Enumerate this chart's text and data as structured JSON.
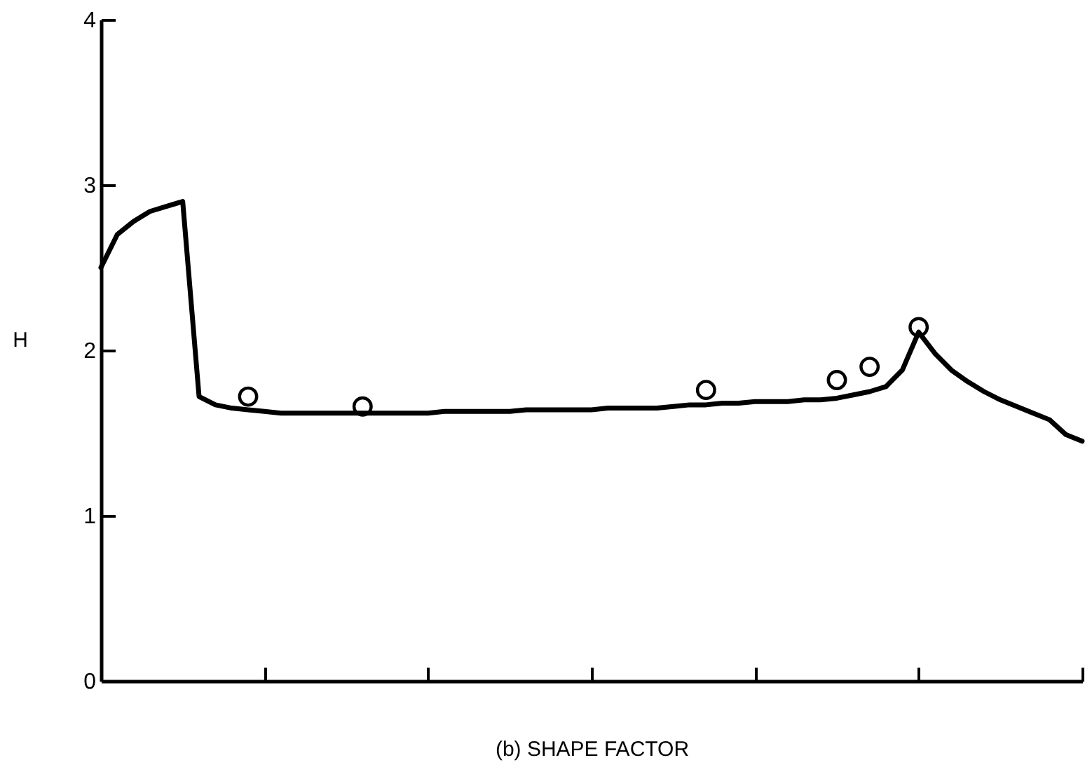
{
  "chart_data": {
    "type": "line",
    "xlabel": "(b) SHAPE FACTOR",
    "ylabel": "H",
    "categories": [
      null,
      null,
      null,
      null,
      null,
      null,
      null,
      null,
      null,
      null,
      null,
      null,
      null,
      null,
      null,
      null,
      null,
      null,
      null,
      null,
      null,
      null,
      null,
      null,
      null,
      null,
      null,
      null,
      null,
      null,
      null,
      null,
      null,
      null,
      null,
      null,
      null,
      null,
      null,
      null,
      null,
      null,
      null,
      null,
      null,
      null,
      null,
      null,
      null,
      null,
      null,
      null,
      null,
      null,
      null,
      null,
      null,
      null,
      null,
      null,
      null
    ],
    "ylim": [
      0,
      4
    ],
    "yticks": [
      0,
      1,
      2,
      3,
      4
    ],
    "grid": false,
    "series": [
      {
        "color": "#000000",
        "marker": "none",
        "line_style": "solid",
        "values": [
          2.5,
          2.7,
          2.78,
          2.84,
          2.87,
          2.9,
          1.72,
          1.67,
          1.65,
          1.64,
          1.63,
          1.62,
          1.62,
          1.62,
          1.62,
          1.62,
          1.62,
          1.62,
          1.62,
          1.62,
          1.62,
          1.63,
          1.63,
          1.63,
          1.63,
          1.63,
          1.64,
          1.64,
          1.64,
          1.64,
          1.64,
          1.65,
          1.65,
          1.65,
          1.65,
          1.66,
          1.67,
          1.67,
          1.68,
          1.68,
          1.69,
          1.69,
          1.69,
          1.7,
          1.7,
          1.71,
          1.73,
          1.75,
          1.78,
          1.88,
          2.11,
          1.98,
          1.88,
          1.81,
          1.75,
          1.7,
          1.66,
          1.62,
          1.58,
          1.49,
          1.45
        ]
      },
      {
        "type": "scatter",
        "color": "#000000",
        "marker": "circle",
        "values": [
          null,
          null,
          null,
          null,
          null,
          null,
          null,
          null,
          null,
          1.72,
          null,
          null,
          null,
          null,
          null,
          null,
          1.66,
          null,
          null,
          null,
          null,
          null,
          null,
          null,
          null,
          null,
          null,
          null,
          null,
          null,
          null,
          null,
          null,
          null,
          null,
          null,
          null,
          1.76,
          null,
          null,
          null,
          null,
          null,
          null,
          null,
          1.82,
          null,
          1.9,
          null,
          null,
          2.14,
          null,
          null,
          null,
          null,
          null,
          null,
          null,
          null,
          null,
          null
        ]
      }
    ]
  }
}
